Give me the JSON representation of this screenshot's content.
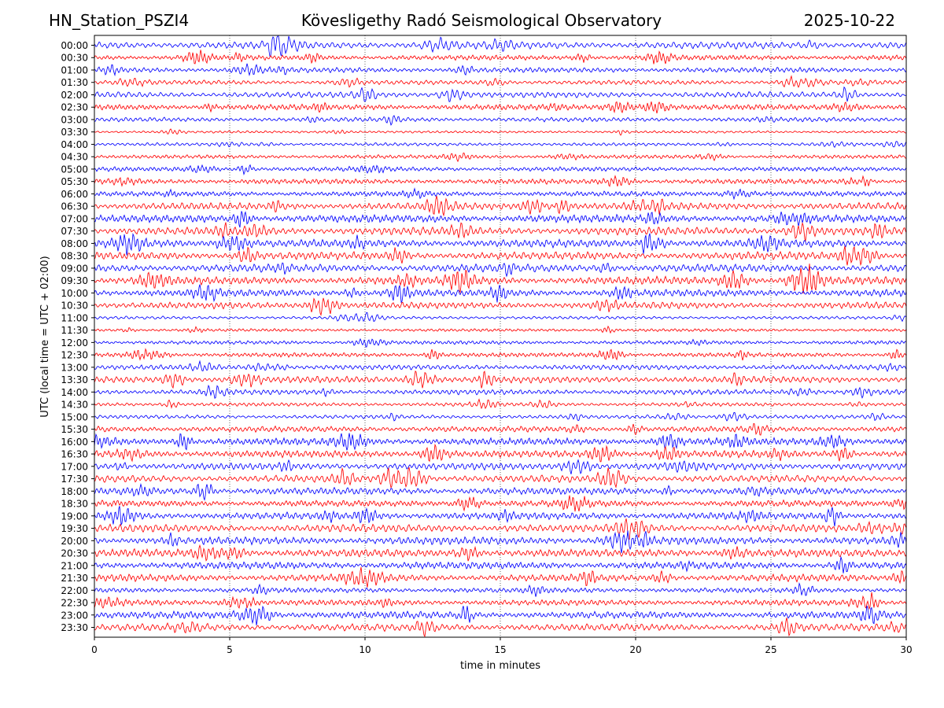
{
  "header": {
    "station": "HN_Station_PSZI4",
    "observatory": "Kövesligethy Radó Seismological Observatory",
    "date": "2025-10-22"
  },
  "chart_data": {
    "type": "line",
    "title": "Kövesligethy Radó Seismological Observatory",
    "xlabel": "time in minutes",
    "ylabel": "UTC (local time = UTC + 02:00)",
    "xlim": [
      0,
      30
    ],
    "x_ticks": [
      "0",
      "5",
      "10",
      "15",
      "20",
      "25",
      "30"
    ],
    "grid": "vertical dotted lines at 5-minute ticks",
    "trace_colors": [
      "#0000ff",
      "#ff0000"
    ],
    "row_labels": [
      "00:00",
      "00:30",
      "01:00",
      "01:30",
      "02:00",
      "02:30",
      "03:00",
      "03:30",
      "04:00",
      "04:30",
      "05:00",
      "05:30",
      "06:00",
      "06:30",
      "07:00",
      "07:30",
      "08:00",
      "08:30",
      "09:00",
      "09:30",
      "10:00",
      "10:30",
      "11:00",
      "11:30",
      "12:00",
      "12:30",
      "13:00",
      "13:30",
      "14:00",
      "14:30",
      "15:00",
      "15:30",
      "16:00",
      "16:30",
      "17:00",
      "17:30",
      "18:00",
      "18:30",
      "19:00",
      "19:30",
      "20:00",
      "20:30",
      "21:00",
      "21:30",
      "22:00",
      "22:30",
      "23:00",
      "23:30"
    ],
    "row_activity": [
      0.9,
      0.6,
      0.6,
      0.5,
      0.7,
      0.7,
      0.5,
      0.2,
      0.3,
      0.4,
      0.5,
      0.6,
      0.6,
      0.9,
      1.0,
      1.0,
      1.0,
      1.0,
      1.0,
      1.0,
      0.9,
      0.8,
      0.3,
      0.3,
      0.4,
      0.5,
      0.6,
      0.8,
      0.6,
      0.4,
      0.4,
      0.7,
      0.9,
      0.9,
      0.9,
      0.9,
      0.9,
      0.8,
      0.9,
      1.0,
      1.0,
      1.0,
      0.9,
      0.9,
      0.6,
      0.7,
      0.9,
      0.9
    ]
  }
}
